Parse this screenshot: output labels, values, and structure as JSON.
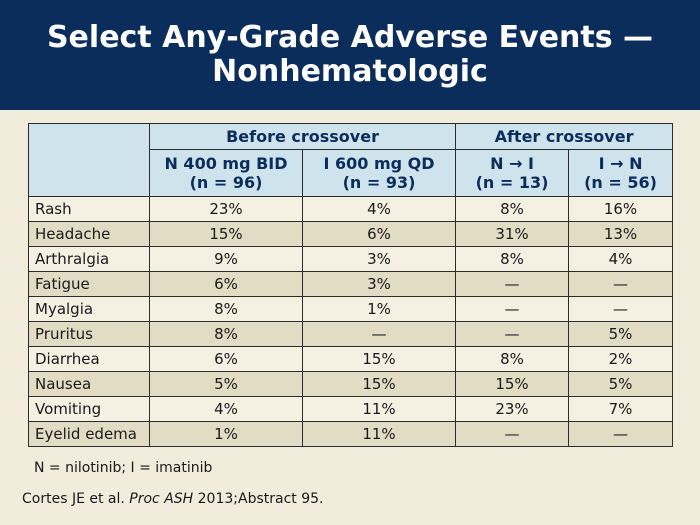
{
  "slide": {
    "title_line1": "Select Any-Grade Adverse Events —",
    "title_line2": "Nonhematologic"
  },
  "table": {
    "groups": [
      "Before crossover",
      "After crossover"
    ],
    "columns": [
      {
        "line1": "N 400 mg BID",
        "line2": "(n = 96)"
      },
      {
        "line1": "I 600 mg QD",
        "line2": "(n = 93)"
      },
      {
        "line1": "N → I",
        "line2": "(n = 13)"
      },
      {
        "line1": "I → N",
        "line2": "(n = 56)"
      }
    ],
    "rows": [
      {
        "event": "Rash",
        "values": [
          "23%",
          "4%",
          "8%",
          "16%"
        ]
      },
      {
        "event": "Headache",
        "values": [
          "15%",
          "6%",
          "31%",
          "13%"
        ]
      },
      {
        "event": "Arthralgia",
        "values": [
          "9%",
          "3%",
          "8%",
          "4%"
        ]
      },
      {
        "event": "Fatigue",
        "values": [
          "6%",
          "3%",
          "—",
          "—"
        ]
      },
      {
        "event": "Myalgia",
        "values": [
          "8%",
          "1%",
          "—",
          "—"
        ]
      },
      {
        "event": "Pruritus",
        "values": [
          "8%",
          "—",
          "—",
          "5%"
        ]
      },
      {
        "event": "Diarrhea",
        "values": [
          "6%",
          "15%",
          "8%",
          "2%"
        ]
      },
      {
        "event": "Nausea",
        "values": [
          "5%",
          "15%",
          "15%",
          "5%"
        ]
      },
      {
        "event": "Vomiting",
        "values": [
          "4%",
          "11%",
          "23%",
          "7%"
        ]
      },
      {
        "event": "Eyelid edema",
        "values": [
          "1%",
          "11%",
          "—",
          "—"
        ]
      }
    ]
  },
  "footnote": "N = nilotinib; I = imatinib",
  "citation": {
    "authors": "Cortes JE et al. ",
    "journal": "Proc ASH",
    "rest": " 2013;Abstract 95."
  }
}
